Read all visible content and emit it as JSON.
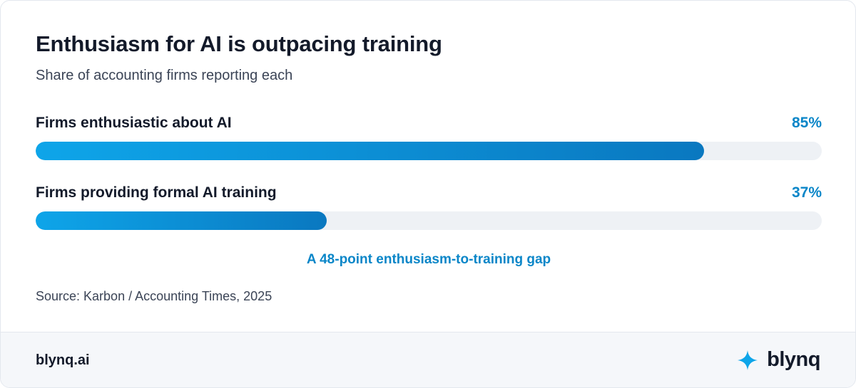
{
  "chart_data": {
    "type": "bar",
    "orientation": "horizontal",
    "title": "Enthusiasm for AI is outpacing training",
    "subtitle": "Share of accounting firms reporting each",
    "categories": [
      "Firms enthusiastic about AI",
      "Firms providing formal AI training"
    ],
    "values": [
      85,
      37
    ],
    "value_labels": [
      "85%",
      "37%"
    ],
    "xlim": [
      0,
      100
    ],
    "unit": "%",
    "grid": false,
    "legend": "none",
    "annotation": "A 48-point enthusiasm-to-training gap",
    "source": "Source: Karbon / Accounting Times, 2025",
    "colors": {
      "bar_start": "#0ea5e9",
      "bar_end": "#0a78c0",
      "track": "#eef1f5",
      "accent_text": "#0a86c8"
    }
  },
  "footer": {
    "url": "blynq.ai",
    "brand_name": "blynq",
    "brand_icon": "sparkle-icon",
    "brand_icon_color": "#0ea5e9"
  }
}
